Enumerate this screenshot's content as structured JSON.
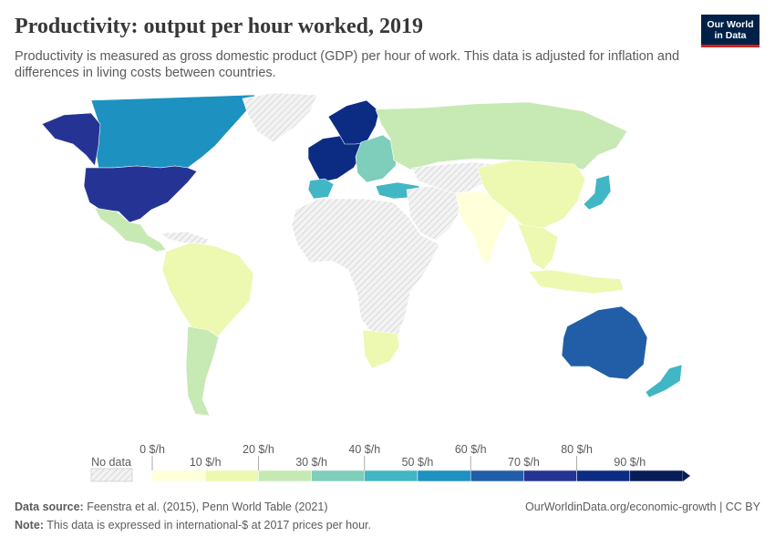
{
  "header": {
    "title": "Productivity: output per hour worked, 2019",
    "subtitle": "Productivity is measured as gross domestic product (GDP) per hour of work. This data is adjusted for inflation and differences in living costs between countries.",
    "logo_line1": "Our World",
    "logo_line2": "in Data",
    "logo_bg": "#002147",
    "logo_accent": "#ce261e"
  },
  "legend": {
    "no_data_label": "No data",
    "upper_labels": [
      "0 $/h",
      "20 $/h",
      "40 $/h",
      "60 $/h",
      "80 $/h"
    ],
    "lower_labels": [
      "10 $/h",
      "30 $/h",
      "50 $/h",
      "70 $/h",
      "90 $/h"
    ],
    "bins": [
      {
        "min": 0,
        "max": 10,
        "color": "#ffffd9"
      },
      {
        "min": 10,
        "max": 20,
        "color": "#edf8b1"
      },
      {
        "min": 20,
        "max": 30,
        "color": "#c7e9b4"
      },
      {
        "min": 30,
        "max": 40,
        "color": "#7fcdbb"
      },
      {
        "min": 40,
        "max": 50,
        "color": "#41b6c4"
      },
      {
        "min": 50,
        "max": 60,
        "color": "#1d91c0"
      },
      {
        "min": 60,
        "max": 70,
        "color": "#225ea8"
      },
      {
        "min": 70,
        "max": 80,
        "color": "#253494"
      },
      {
        "min": 80,
        "max": 90,
        "color": "#0c2c84"
      },
      {
        "min": 90,
        "max": 100,
        "color": "#081d58"
      }
    ]
  },
  "map_regions": [
    {
      "name": "north-america-north",
      "bin": 5
    },
    {
      "name": "alaska",
      "bin": 7
    },
    {
      "name": "greenland",
      "bin": -1
    },
    {
      "name": "united-states",
      "bin": 7
    },
    {
      "name": "mexico-central-america",
      "bin": 2
    },
    {
      "name": "caribbean",
      "bin": -1
    },
    {
      "name": "south-america-north",
      "bin": 1
    },
    {
      "name": "south-america-south",
      "bin": 2
    },
    {
      "name": "western-europe",
      "bin": 8
    },
    {
      "name": "iberia",
      "bin": 4
    },
    {
      "name": "scandinavia",
      "bin": 8
    },
    {
      "name": "eastern-europe",
      "bin": 3
    },
    {
      "name": "russia",
      "bin": 2
    },
    {
      "name": "turkey",
      "bin": 4
    },
    {
      "name": "africa",
      "bin": -1
    },
    {
      "name": "southern-africa",
      "bin": 1
    },
    {
      "name": "middle-east",
      "bin": -1
    },
    {
      "name": "central-asia",
      "bin": -1
    },
    {
      "name": "india",
      "bin": 0
    },
    {
      "name": "china",
      "bin": 1
    },
    {
      "name": "japan",
      "bin": 4
    },
    {
      "name": "southeast-asia",
      "bin": 1
    },
    {
      "name": "indonesia",
      "bin": 1
    },
    {
      "name": "australia",
      "bin": 6
    },
    {
      "name": "new-zealand",
      "bin": 4
    }
  ],
  "footer": {
    "source_label": "Data source:",
    "source_text": "Feenstra et al. (2015), Penn World Table (2021)",
    "url_text": "OurWorldinData.org/economic-growth | CC BY",
    "note_label": "Note:",
    "note_text": "This data is expressed in international-$ at 2017 prices per hour."
  }
}
